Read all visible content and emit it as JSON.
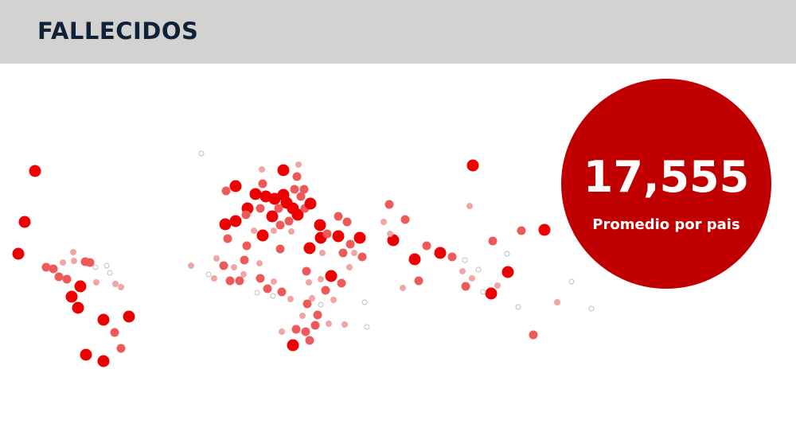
{
  "header": {
    "title": "FALLECIDOS"
  },
  "stat": {
    "value": "17,555",
    "label": "Promedio por pais"
  },
  "colors": {
    "header_bg": "#d4d1d1",
    "title": "#0f2238",
    "accent": "#c00000",
    "marker_high": "#ee0000",
    "marker_mid": "#ee5a5a",
    "marker_low": "#f2a5a5"
  },
  "map": {
    "legend_note": "",
    "marker_levels": [
      "high",
      "mid",
      "low",
      "none"
    ]
  }
}
